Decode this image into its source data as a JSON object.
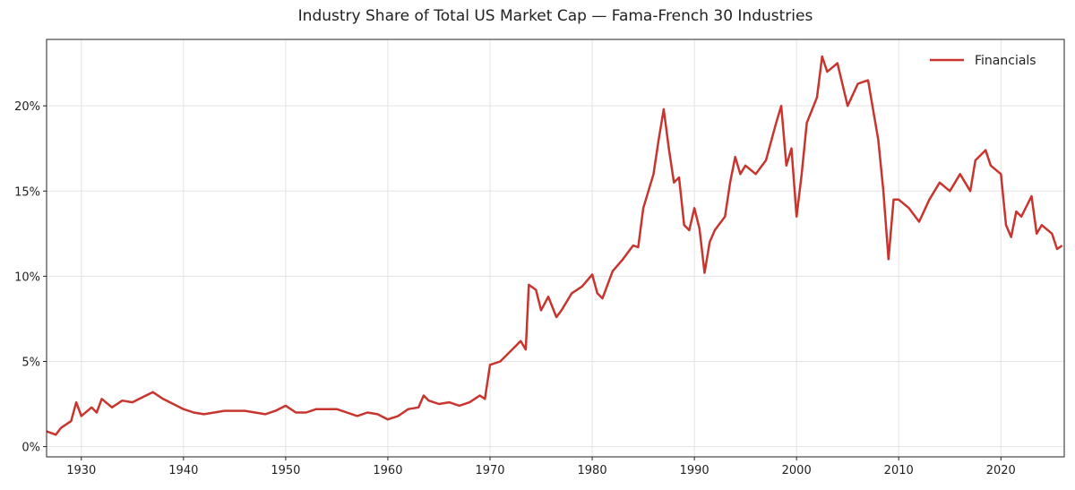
{
  "chart_data": {
    "type": "line",
    "title": "Industry Share of Total US Market Cap — Fama-French 30 Industries",
    "xlabel": "",
    "ylabel": "",
    "xlim": [
      1926.6,
      2026.2
    ],
    "ylim": [
      -0.6,
      23.9
    ],
    "grid": true,
    "legend_placement": "top-right",
    "x_ticks": [
      1930,
      1940,
      1950,
      1960,
      1970,
      1980,
      1990,
      2000,
      2010,
      2020
    ],
    "x_tick_labels": [
      "1930",
      "1940",
      "1950",
      "1960",
      "1970",
      "1980",
      "1990",
      "2000",
      "2010",
      "2020"
    ],
    "y_ticks": [
      0,
      5,
      10,
      15,
      20
    ],
    "y_tick_labels": [
      "0%",
      "5%",
      "10%",
      "15%",
      "20%"
    ],
    "series": [
      {
        "name": "Financials",
        "color": "#c8352e",
        "x": [
          1926.6,
          1927.5,
          1928,
          1929,
          1929.5,
          1930,
          1931,
          1931.5,
          1932,
          1933,
          1934,
          1935,
          1936,
          1937,
          1938,
          1939,
          1940,
          1941,
          1942,
          1943,
          1944,
          1946,
          1948,
          1949,
          1950,
          1951,
          1952,
          1953,
          1955,
          1956,
          1957,
          1958,
          1959,
          1960,
          1961,
          1962,
          1963,
          1963.5,
          1964,
          1965,
          1966,
          1967,
          1968,
          1969,
          1969.5,
          1970,
          1971,
          1972,
          1973,
          1973.5,
          1973.8,
          1974.5,
          1975,
          1975.7,
          1976.5,
          1977,
          1978,
          1979,
          1980,
          1980.5,
          1981,
          1982,
          1983,
          1984,
          1984.5,
          1985,
          1986,
          1986.5,
          1987,
          1987.5,
          1988,
          1988.5,
          1989,
          1989.5,
          1990,
          1990.5,
          1991,
          1991.5,
          1992,
          1993,
          1993.5,
          1994,
          1994.5,
          1995,
          1996,
          1997,
          1998,
          1998.5,
          1999,
          1999.5,
          2000,
          2000.5,
          2001,
          2002,
          2002.5,
          2003,
          2004,
          2005,
          2006,
          2007,
          2008,
          2008.5,
          2009,
          2009.5,
          2010,
          2011,
          2012,
          2013,
          2014,
          2015,
          2016,
          2017,
          2017.5,
          2018.5,
          2019,
          2020,
          2020.5,
          2021,
          2021.5,
          2022,
          2023,
          2023.5,
          2024,
          2025,
          2025.5,
          2026
        ],
        "values": [
          0.9,
          0.7,
          1.1,
          1.5,
          2.6,
          1.8,
          2.3,
          2.0,
          2.8,
          2.3,
          2.7,
          2.6,
          2.9,
          3.2,
          2.8,
          2.5,
          2.2,
          2.0,
          1.9,
          2.0,
          2.1,
          2.1,
          1.9,
          2.1,
          2.4,
          2.0,
          2.0,
          2.2,
          2.2,
          2.0,
          1.8,
          2.0,
          1.9,
          1.6,
          1.8,
          2.2,
          2.3,
          3.0,
          2.7,
          2.5,
          2.6,
          2.4,
          2.6,
          3.0,
          2.8,
          4.8,
          5.0,
          5.6,
          6.2,
          5.7,
          9.5,
          9.2,
          8.0,
          8.8,
          7.6,
          8.0,
          9.0,
          9.4,
          10.1,
          9.0,
          8.7,
          10.3,
          11.0,
          11.8,
          11.7,
          14.0,
          16.0,
          18.0,
          19.8,
          17.5,
          15.5,
          15.8,
          13.0,
          12.7,
          14.0,
          12.8,
          10.2,
          12.0,
          12.7,
          13.5,
          15.5,
          17.0,
          16.0,
          16.5,
          16.0,
          16.8,
          19.0,
          20.0,
          16.5,
          17.5,
          13.5,
          16.0,
          19.0,
          20.5,
          22.9,
          22.0,
          22.5,
          20.0,
          21.3,
          21.5,
          18.0,
          15.0,
          11.0,
          14.5,
          14.5,
          14.0,
          13.2,
          14.5,
          15.5,
          15.0,
          16.0,
          15.0,
          16.8,
          17.4,
          16.5,
          16.0,
          13.0,
          12.3,
          13.8,
          13.5,
          14.7,
          12.5,
          13.0,
          12.5,
          11.6,
          11.8
        ]
      }
    ]
  }
}
